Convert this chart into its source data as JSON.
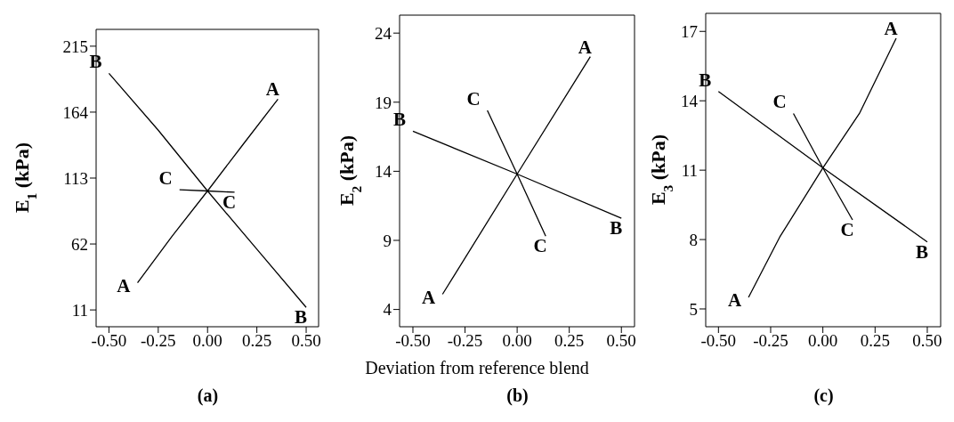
{
  "chart_data": [
    {
      "type": "line",
      "ylabel": "E$_{1}$ (kPa)",
      "annotations": [
        "(a)"
      ],
      "xlim": [
        -0.565,
        0.563
      ],
      "ylim": [
        -2,
        228
      ],
      "xticks": [
        {
          "value": -0.5,
          "label": "-0.50"
        },
        {
          "value": -0.25,
          "label": "-0.25"
        },
        {
          "value": 0,
          "label": "0.00"
        },
        {
          "value": 0.25,
          "label": "0.25"
        },
        {
          "value": 0.5,
          "label": "0.50"
        }
      ],
      "yticks": [
        11,
        62,
        113,
        164,
        215
      ],
      "grid": false,
      "legend": false,
      "marker": "none",
      "line_style": "solid",
      "series": [
        {
          "name": "A",
          "color": "#000000",
          "x": [
            -0.355,
            -0.18,
            0,
            0.18,
            0.357
          ],
          "values": [
            32,
            68,
            103,
            139,
            174
          ]
        },
        {
          "name": "B",
          "color": "#000000",
          "x": [
            -0.5,
            -0.25,
            0,
            0.25,
            0.5
          ],
          "values": [
            194,
            150,
            103,
            58,
            13
          ]
        },
        {
          "name": "C",
          "color": "#000000",
          "x": [
            -0.142,
            0,
            0.137
          ],
          "values": [
            104,
            103,
            102
          ]
        }
      ]
    },
    {
      "type": "line",
      "ylabel": "E$_{2}$ (kPa)",
      "xlabel": "Deviation from reference blend",
      "annotations": [
        "(b)"
      ],
      "xlim": [
        -0.564,
        0.563
      ],
      "ylim": [
        2.75,
        25.3
      ],
      "xticks": [
        {
          "value": -0.5,
          "label": "-0.50"
        },
        {
          "value": -0.25,
          "label": "-0.25"
        },
        {
          "value": 0,
          "label": "0.00"
        },
        {
          "value": 0.25,
          "label": "0.25"
        },
        {
          "value": 0.5,
          "label": "0.50"
        }
      ],
      "yticks": [
        4,
        9,
        14,
        19,
        24
      ],
      "grid": false,
      "legend": false,
      "marker": "none",
      "line_style": "solid",
      "series": [
        {
          "name": "A",
          "color": "#000000",
          "x": [
            -0.358,
            0,
            0.351
          ],
          "values": [
            5.1,
            13.8,
            22.3
          ]
        },
        {
          "name": "B",
          "color": "#000000",
          "x": [
            -0.5,
            0,
            0.5
          ],
          "values": [
            16.9,
            13.8,
            10.6
          ]
        },
        {
          "name": "C",
          "color": "#000000",
          "x": [
            -0.143,
            0,
            0.137
          ],
          "values": [
            18.4,
            13.8,
            9.3
          ]
        }
      ]
    },
    {
      "type": "line",
      "ylabel": "E$_{3}$ (kPa)",
      "annotations": [
        "(c)"
      ],
      "xlim": [
        -0.561,
        0.564
      ],
      "ylim": [
        4.23,
        17.78
      ],
      "xticks": [
        {
          "value": -0.5,
          "label": "-0.50"
        },
        {
          "value": -0.25,
          "label": "-0.25"
        },
        {
          "value": 0,
          "label": "0.00"
        },
        {
          "value": 0.25,
          "label": "0.25"
        },
        {
          "value": 0.5,
          "label": "0.50"
        }
      ],
      "yticks": [
        5,
        8,
        11,
        14,
        17
      ],
      "grid": false,
      "legend": false,
      "marker": "none",
      "line_style": "solid",
      "series": [
        {
          "name": "A",
          "color": "#000000",
          "x": [
            -0.356,
            -0.207,
            0,
            0.175,
            0.351
          ],
          "values": [
            5.5,
            8.1,
            11.1,
            13.45,
            16.7
          ]
        },
        {
          "name": "B",
          "color": "#000000",
          "x": [
            -0.5,
            0,
            0.5
          ],
          "values": [
            14.4,
            11.1,
            7.9
          ]
        },
        {
          "name": "C",
          "color": "#000000",
          "x": [
            -0.141,
            0,
            0.142
          ],
          "values": [
            13.45,
            11.1,
            8.85
          ]
        }
      ]
    }
  ]
}
